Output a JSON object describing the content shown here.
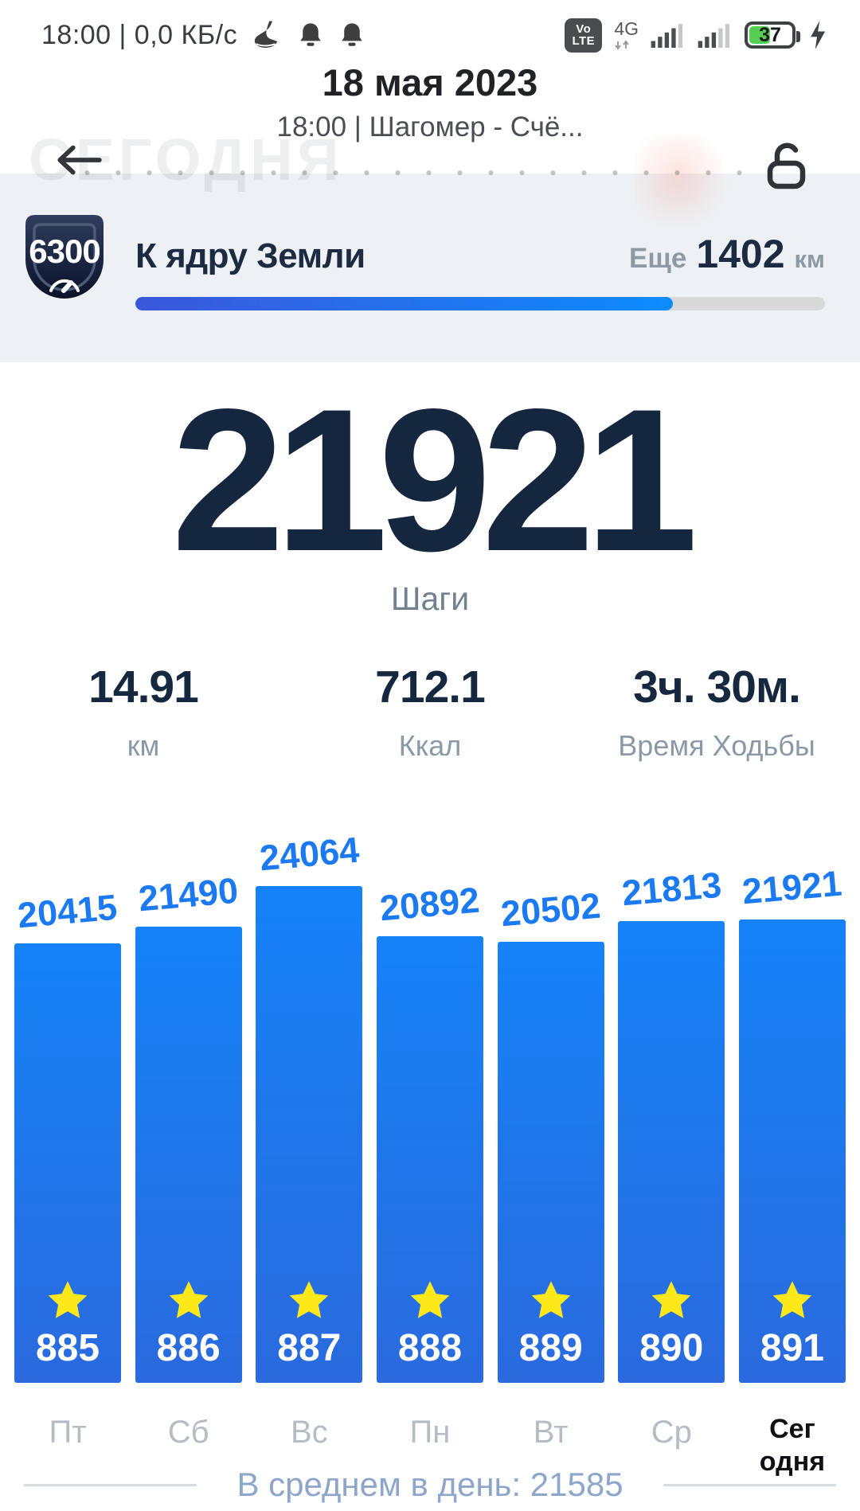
{
  "status_bar": {
    "left_text": "18:00 | 0,0 КБ/с",
    "volte_line1": "Vo",
    "volte_line2": "LTE",
    "network_type": "4G",
    "battery_percent": "37"
  },
  "header": {
    "title": "18 мая 2023",
    "subtitle": "18:00 | Шагомер - Счё...",
    "watermark": "СЕГОДНЯ"
  },
  "goal_banner": {
    "badge_value": "6300",
    "title": "К ядру Земли",
    "remaining_prefix": "Еще",
    "remaining_value": "1402",
    "remaining_unit": "км",
    "progress_percent": 78
  },
  "today_summary": {
    "steps_value": "21921",
    "steps_label": "Шаги",
    "stats": [
      {
        "value": "14.91",
        "label": "км"
      },
      {
        "value": "712.1",
        "label": "Ккал"
      },
      {
        "value": "3ч. 30м.",
        "label": "Время Ходьбы"
      }
    ]
  },
  "chart_data": {
    "type": "bar",
    "title": "",
    "xlabel": "",
    "ylabel": "",
    "categories": [
      "Пт",
      "Сб",
      "Вс",
      "Пн",
      "Вт",
      "Ср",
      "Сегодня"
    ],
    "values": [
      20415,
      21490,
      24064,
      20892,
      20502,
      21813,
      21921
    ],
    "day_numbers": [
      "885",
      "886",
      "887",
      "888",
      "889",
      "890",
      "891"
    ],
    "today_index": 6,
    "today_label_wrapped": "Сег\nодня",
    "ylim": [
      0,
      24064
    ],
    "grid": false,
    "legend": false,
    "bar_color_top": "#1583f7",
    "bar_color_bottom": "#2a6ade",
    "value_label_color": "#1b79f1",
    "star_color": "#ffe81a",
    "average_per_day": 21585
  },
  "footer": {
    "average_text": "В среднем в день: 21585"
  }
}
